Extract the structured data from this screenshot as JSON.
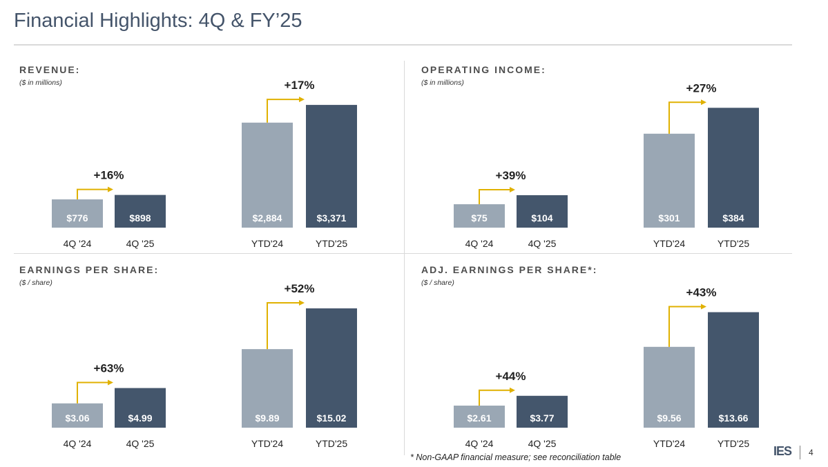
{
  "page": {
    "title": "Financial Highlights: 4Q & FY’25",
    "footnote": "* Non-GAAP financial measure; see reconciliation table",
    "logo": "IES",
    "page_number": "4"
  },
  "colors": {
    "prior_period": "#9aa7b4",
    "current_period": "#44566c",
    "arrow": "#e0b100",
    "value_label": "#ffffff",
    "text": "#222222"
  },
  "panels": [
    {
      "title": "REVENUE:",
      "subtitle": "($ in millions)",
      "groups": [
        {
          "change": "+16%",
          "bars": [
            {
              "cat": "4Q '24",
              "label": "$776"
            },
            {
              "cat": "4Q '25",
              "label": "$898"
            }
          ]
        },
        {
          "change": "+17%",
          "bars": [
            {
              "cat": "YTD'24",
              "label": "$2,884"
            },
            {
              "cat": "YTD'25",
              "label": "$3,371"
            }
          ]
        }
      ]
    },
    {
      "title": "OPERATING INCOME:",
      "subtitle": "($ in millions)",
      "groups": [
        {
          "change": "+39%",
          "bars": [
            {
              "cat": "4Q '24",
              "label": "$75"
            },
            {
              "cat": "4Q '25",
              "label": "$104"
            }
          ]
        },
        {
          "change": "+27%",
          "bars": [
            {
              "cat": "YTD'24",
              "label": "$301"
            },
            {
              "cat": "YTD'25",
              "label": "$384"
            }
          ]
        }
      ]
    },
    {
      "title": "EARNINGS PER SHARE:",
      "subtitle": "($ / share)",
      "groups": [
        {
          "change": "+63%",
          "bars": [
            {
              "cat": "4Q '24",
              "label": "$3.06"
            },
            {
              "cat": "4Q '25",
              "label": "$4.99"
            }
          ]
        },
        {
          "change": "+52%",
          "bars": [
            {
              "cat": "YTD'24",
              "label": "$9.89"
            },
            {
              "cat": "YTD'25",
              "label": "$15.02"
            }
          ]
        }
      ]
    },
    {
      "title": "ADJ. EARNINGS PER SHARE*:",
      "subtitle": "($ / share)",
      "groups": [
        {
          "change": "+44%",
          "bars": [
            {
              "cat": "4Q '24",
              "label": "$2.61"
            },
            {
              "cat": "4Q '25",
              "label": "$3.77"
            }
          ]
        },
        {
          "change": "+43%",
          "bars": [
            {
              "cat": "YTD'24",
              "label": "$9.56"
            },
            {
              "cat": "YTD'25",
              "label": "$13.66"
            }
          ]
        }
      ]
    }
  ],
  "chart_data": [
    {
      "type": "bar",
      "title": "REVENUE:",
      "subtitle": "($ in millions)",
      "categories": [
        "4Q '24",
        "4Q '25",
        "YTD'24",
        "YTD'25"
      ],
      "values": [
        776,
        898,
        2884,
        3371
      ],
      "changes": [
        "+16%",
        "+17%"
      ],
      "ylim": [
        0,
        3600
      ]
    },
    {
      "type": "bar",
      "title": "OPERATING INCOME:",
      "subtitle": "($ in millions)",
      "categories": [
        "4Q '24",
        "4Q '25",
        "YTD'24",
        "YTD'25"
      ],
      "values": [
        75,
        104,
        301,
        384
      ],
      "changes": [
        "+39%",
        "+27%"
      ],
      "ylim": [
        0,
        420
      ]
    },
    {
      "type": "bar",
      "title": "EARNINGS PER SHARE:",
      "subtitle": "($ / share)",
      "categories": [
        "4Q '24",
        "4Q '25",
        "YTD'24",
        "YTD'25"
      ],
      "values": [
        3.06,
        4.99,
        9.89,
        15.02
      ],
      "changes": [
        "+63%",
        "+52%"
      ],
      "ylim": [
        0,
        16.5
      ]
    },
    {
      "type": "bar",
      "title": "ADJ. EARNINGS PER SHARE*:",
      "subtitle": "($ / share)",
      "categories": [
        "4Q '24",
        "4Q '25",
        "YTD'24",
        "YTD'25"
      ],
      "values": [
        2.61,
        3.77,
        9.56,
        13.66
      ],
      "changes": [
        "+44%",
        "+43%"
      ],
      "ylim": [
        0,
        15.5
      ]
    }
  ]
}
